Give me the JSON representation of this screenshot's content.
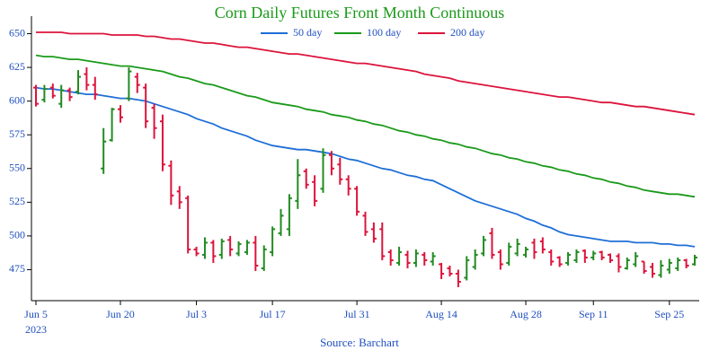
{
  "chart_data": {
    "type": "ohlc",
    "title": "Corn Daily Futures Front Month Continuous",
    "source": "Source: Barchart",
    "x_year": "2023",
    "categories": [
      "Jun 5",
      null,
      null,
      null,
      null,
      null,
      null,
      null,
      null,
      null,
      "Jun 20",
      null,
      null,
      null,
      null,
      null,
      null,
      null,
      null,
      "Jul 3",
      null,
      null,
      null,
      null,
      null,
      null,
      null,
      null,
      "Jul 17",
      null,
      null,
      null,
      null,
      null,
      null,
      null,
      null,
      null,
      "Jul 31",
      null,
      null,
      null,
      null,
      null,
      null,
      null,
      null,
      null,
      "Aug 14",
      null,
      null,
      null,
      null,
      null,
      null,
      null,
      null,
      null,
      "Aug 28",
      null,
      null,
      null,
      null,
      null,
      null,
      null,
      "Sep 11",
      null,
      null,
      null,
      null,
      null,
      null,
      null,
      null,
      "Sep 25",
      null,
      null,
      null
    ],
    "open": [
      610,
      601,
      610,
      598,
      608,
      607,
      620,
      612,
      550,
      571,
      594,
      602,
      618,
      610,
      595,
      585,
      552,
      533,
      528,
      490,
      486,
      495,
      486,
      497,
      487,
      488,
      495,
      476,
      488,
      502,
      505,
      526,
      548,
      540,
      535,
      560,
      553,
      542,
      535,
      515,
      505,
      505,
      488,
      480,
      486,
      480,
      486,
      481,
      479,
      476,
      472,
      469,
      477,
      487,
      502,
      488,
      480,
      487,
      486,
      495,
      496,
      488,
      484,
      480,
      482,
      489,
      484,
      488,
      486,
      485,
      476,
      479,
      481,
      477,
      471,
      475,
      476,
      482,
      479
    ],
    "high": [
      612,
      612,
      613,
      612,
      610,
      623,
      625,
      618,
      580,
      595,
      597,
      625,
      621,
      613,
      598,
      590,
      556,
      537,
      530,
      492,
      499,
      497,
      498,
      500,
      496,
      497,
      500,
      493,
      507,
      520,
      531,
      557,
      550,
      545,
      565,
      563,
      558,
      545,
      537,
      518,
      510,
      510,
      490,
      492,
      489,
      490,
      488,
      488,
      480,
      478,
      475,
      485,
      490,
      500,
      506,
      490,
      495,
      498,
      492,
      498,
      499,
      490,
      485,
      488,
      490,
      490,
      489,
      489,
      487,
      487,
      484,
      488,
      481,
      480,
      482,
      483,
      484,
      483,
      486
    ],
    "low": [
      596,
      599,
      602,
      595,
      600,
      605,
      608,
      601,
      546,
      570,
      584,
      600,
      606,
      580,
      572,
      548,
      523,
      520,
      487,
      485,
      483,
      480,
      483,
      485,
      485,
      486,
      474,
      474,
      485,
      500,
      500,
      520,
      535,
      522,
      532,
      545,
      538,
      530,
      515,
      500,
      495,
      482,
      478,
      478,
      476,
      477,
      478,
      478,
      468,
      470,
      462,
      467,
      475,
      485,
      483,
      475,
      478,
      485,
      484,
      483,
      487,
      478,
      477,
      478,
      480,
      480,
      482,
      482,
      480,
      473,
      475,
      477,
      472,
      469,
      469,
      472,
      474,
      476,
      478
    ],
    "close": [
      598,
      609,
      604,
      608,
      603,
      618,
      612,
      605,
      570,
      594,
      588,
      622,
      612,
      585,
      580,
      553,
      530,
      525,
      490,
      487,
      495,
      485,
      496,
      490,
      494,
      495,
      478,
      490,
      505,
      515,
      528,
      545,
      538,
      526,
      560,
      550,
      542,
      535,
      518,
      503,
      498,
      485,
      482,
      488,
      480,
      487,
      482,
      485,
      472,
      472,
      466,
      482,
      486,
      497,
      486,
      479,
      492,
      494,
      490,
      488,
      490,
      481,
      479,
      486,
      488,
      484,
      487,
      484,
      482,
      477,
      482,
      485,
      474,
      472,
      478,
      480,
      482,
      478,
      484
    ],
    "up_color": "#228b22",
    "down_color": "#dc143c",
    "series": [
      {
        "name": "50 day",
        "color": "#1f6fd6",
        "values": [
          610,
          609,
          609,
          608,
          607,
          606,
          605,
          605,
          604,
          603,
          602,
          602,
          601,
          600,
          598,
          596,
          594,
          592,
          590,
          587,
          585,
          583,
          580,
          578,
          576,
          574,
          571,
          569,
          567,
          566,
          565,
          564,
          564,
          563,
          562,
          561,
          559,
          557,
          556,
          554,
          552,
          550,
          549,
          547,
          545,
          544,
          542,
          541,
          538,
          535,
          532,
          529,
          526,
          524,
          522,
          520,
          518,
          516,
          513,
          511,
          508,
          506,
          503,
          501,
          500,
          499,
          498,
          497,
          496,
          496,
          496,
          495,
          495,
          495,
          494,
          494,
          493,
          493,
          492
        ]
      },
      {
        "name": "100 day",
        "color": "#1a9a1a",
        "values": [
          634,
          633,
          633,
          632,
          631,
          631,
          630,
          629,
          628,
          627,
          626,
          626,
          625,
          624,
          623,
          622,
          620,
          618,
          617,
          615,
          613,
          612,
          610,
          608,
          606,
          604,
          603,
          601,
          599,
          598,
          597,
          596,
          594,
          593,
          592,
          590,
          589,
          588,
          586,
          585,
          583,
          582,
          580,
          578,
          577,
          575,
          574,
          572,
          571,
          569,
          568,
          566,
          565,
          563,
          561,
          560,
          558,
          557,
          555,
          554,
          552,
          551,
          549,
          548,
          546,
          545,
          543,
          542,
          540,
          539,
          537,
          536,
          534,
          533,
          532,
          531,
          531,
          530,
          529
        ]
      },
      {
        "name": "200 day",
        "color": "#dc143c",
        "values": [
          651,
          651,
          651,
          651,
          650,
          650,
          650,
          650,
          650,
          649,
          649,
          649,
          649,
          648,
          648,
          647,
          646,
          646,
          645,
          644,
          643,
          643,
          642,
          641,
          640,
          640,
          639,
          638,
          637,
          636,
          635,
          635,
          634,
          633,
          632,
          631,
          630,
          629,
          628,
          628,
          627,
          626,
          625,
          624,
          623,
          622,
          620,
          619,
          618,
          617,
          615,
          614,
          613,
          612,
          611,
          610,
          609,
          608,
          607,
          606,
          605,
          604,
          603,
          603,
          602,
          601,
          600,
          599,
          599,
          598,
          597,
          596,
          596,
          595,
          594,
          593,
          592,
          591,
          590
        ]
      }
    ],
    "ylim": [
      452,
      663
    ],
    "yticks": [
      475,
      500,
      525,
      550,
      575,
      600,
      625,
      650
    ],
    "legend": "top",
    "grid": false
  }
}
